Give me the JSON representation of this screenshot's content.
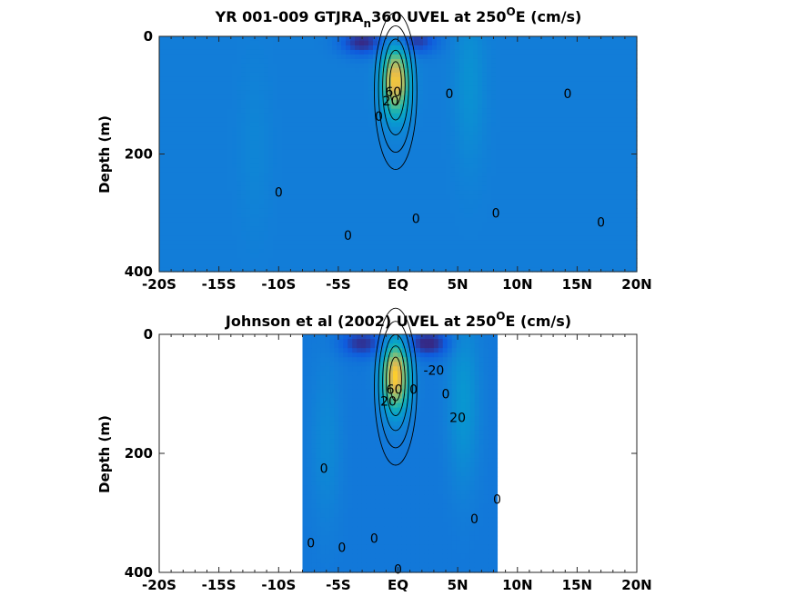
{
  "chart_data": [
    {
      "type": "heatmap",
      "subtype": "filled-contour",
      "title": {
        "pre": "YR 001-009 GTJRA",
        "sub": "n",
        "mid": "360 UVEL at 250",
        "sup": "O",
        "post": "E (cm/s)"
      },
      "ylabel": "Depth (m)",
      "xlim": [
        -20,
        20
      ],
      "ylim": [
        0,
        400
      ],
      "y_reversed": true,
      "xticks": [
        -20,
        -15,
        -10,
        -5,
        0,
        5,
        10,
        15,
        20
      ],
      "xtick_labels": [
        "-20S",
        "-15S",
        "-10S",
        "-5S",
        "EQ",
        "5N",
        "10N",
        "15N",
        "20N"
      ],
      "yticks": [
        0,
        200,
        400
      ],
      "ytick_labels": [
        "0",
        "200",
        "400"
      ],
      "data_extent_x": [
        -20,
        20
      ],
      "colormap": "parula",
      "background_value": -5,
      "features": [
        {
          "kind": "undercurrent-core",
          "lat": -0.2,
          "depth": 75,
          "value": 95
        },
        {
          "kind": "westward-surface-flow",
          "lat": -3,
          "depth": 10,
          "value": -35
        },
        {
          "kind": "westward-surface-flow",
          "lat": 1.5,
          "depth": 8,
          "value": -30
        },
        {
          "kind": "eastward-band",
          "lat": 6,
          "depth": 80,
          "value": 12
        },
        {
          "kind": "eastward-band",
          "lat": -12,
          "depth": 190,
          "value": 5
        }
      ],
      "contour_labels": [
        {
          "text": "0",
          "lat": -10,
          "depth": 265
        },
        {
          "text": "0",
          "lat": -4.2,
          "depth": 338
        },
        {
          "text": "0",
          "lat": 1.5,
          "depth": 310
        },
        {
          "text": "0",
          "lat": 4.3,
          "depth": 97
        },
        {
          "text": "0",
          "lat": 8.2,
          "depth": 300
        },
        {
          "text": "0",
          "lat": 14.2,
          "depth": 97
        },
        {
          "text": "0",
          "lat": 17,
          "depth": 316
        },
        {
          "text": "0",
          "lat": -1.6,
          "depth": 136
        },
        {
          "text": "20",
          "lat": -0.6,
          "depth": 110
        },
        {
          "text": "60",
          "lat": -0.4,
          "depth": 94
        }
      ]
    },
    {
      "type": "heatmap",
      "subtype": "filled-contour",
      "title": {
        "pre": "Johnson et al (2002) UVEL at 250",
        "sup": "O",
        "post": "E (cm/s)"
      },
      "ylabel": "Depth (m)",
      "xlim": [
        -20,
        20
      ],
      "ylim": [
        0,
        400
      ],
      "y_reversed": true,
      "xticks": [
        -20,
        -15,
        -10,
        -5,
        0,
        5,
        10,
        15,
        20
      ],
      "xtick_labels": [
        "-20S",
        "-15S",
        "-10S",
        "-5S",
        "EQ",
        "5N",
        "10N",
        "15N",
        "20N"
      ],
      "yticks": [
        0,
        200,
        400
      ],
      "ytick_labels": [
        "0",
        "200",
        "400"
      ],
      "data_extent_x": [
        -8,
        8.3
      ],
      "colormap": "parula",
      "background_value": -8,
      "features": [
        {
          "kind": "undercurrent-core",
          "lat": -0.2,
          "depth": 70,
          "value": 100
        },
        {
          "kind": "westward-surface-flow",
          "lat": -3,
          "depth": 15,
          "value": -30
        },
        {
          "kind": "westward-surface-flow",
          "lat": 2.5,
          "depth": 15,
          "value": -35
        },
        {
          "kind": "eastward-band",
          "lat": 5.5,
          "depth": 110,
          "value": 18
        },
        {
          "kind": "eastward-band",
          "lat": -6,
          "depth": 180,
          "value": 10
        }
      ],
      "contour_labels": [
        {
          "text": "0",
          "lat": -6.2,
          "depth": 225
        },
        {
          "text": "0",
          "lat": -7.3,
          "depth": 350
        },
        {
          "text": "0",
          "lat": -4.7,
          "depth": 358
        },
        {
          "text": "0",
          "lat": -2,
          "depth": 343
        },
        {
          "text": "0",
          "lat": 0,
          "depth": 395
        },
        {
          "text": "0",
          "lat": 1.3,
          "depth": 92
        },
        {
          "text": "0",
          "lat": 4,
          "depth": 100
        },
        {
          "text": "0",
          "lat": 6.4,
          "depth": 310
        },
        {
          "text": "0",
          "lat": 8.3,
          "depth": 277
        },
        {
          "text": "-20",
          "lat": 3,
          "depth": 60
        },
        {
          "text": "20",
          "lat": 5,
          "depth": 140
        },
        {
          "text": "20",
          "lat": -0.8,
          "depth": 112
        },
        {
          "text": "60",
          "lat": -0.3,
          "depth": 92
        }
      ]
    }
  ]
}
